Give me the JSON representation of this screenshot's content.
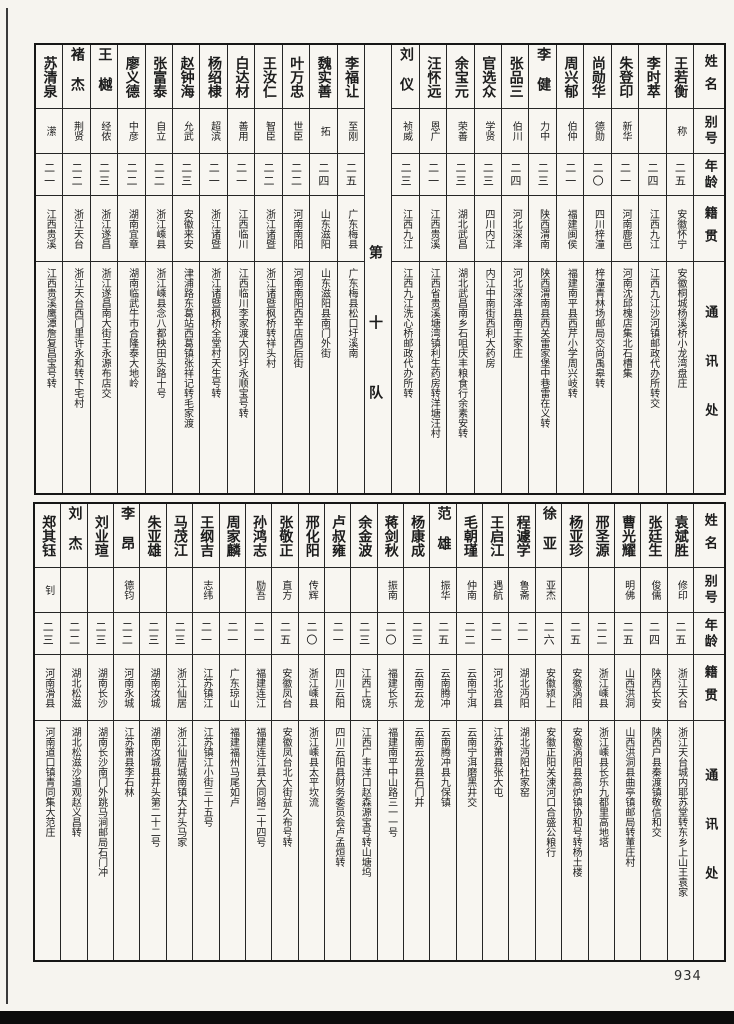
{
  "page_number": "934",
  "row_headers": {
    "name": "姓名",
    "alias": "别号",
    "age": "年龄",
    "native": "籍贯",
    "address": "通讯处"
  },
  "tables": [
    {
      "divider": {
        "label": "第十队",
        "after_index": 10
      },
      "people": [
        {
          "name": "王若衡",
          "alias": "称",
          "age": "二五",
          "native": "安徽怀宁",
          "address": "安徽桐城杨溪桥小龙湾盘庄"
        },
        {
          "name": "李时萃",
          "alias": "",
          "age": "二四",
          "native": "江西九江",
          "address": "江西九江沙河镇邮政代办所转交"
        },
        {
          "name": "朱登印",
          "alias": "新华",
          "age": "二一",
          "native": "河南鹿邑",
          "address": "河南沈邱槐店集北石槽集"
        },
        {
          "name": "尚勋华",
          "alias": "德勋",
          "age": "二〇",
          "native": "四川梓潼",
          "address": "梓潼青林场邮局交尚禹皋转"
        },
        {
          "name": "周兴郁",
          "alias": "伯仲",
          "age": "二一",
          "native": "福建闽侯",
          "address": "福建南平县西芹小学周兴岐转"
        },
        {
          "name": "李健",
          "alias": "力中",
          "age": "二三",
          "native": "陕西渭南",
          "address": "陕西渭南县西关雷家堡中巷雷在义转"
        },
        {
          "name": "张品三",
          "alias": "伯川",
          "age": "二四",
          "native": "河北深泽",
          "address": "河北深泽县南王家庄"
        },
        {
          "name": "官选众",
          "alias": "学贤",
          "age": "二三",
          "native": "四川内江",
          "address": "内江中南街西利大药房"
        },
        {
          "name": "余宝元",
          "alias": "荣善",
          "age": "二三",
          "native": "湖北武昌",
          "address": "湖北武昌南乡石咀庆丰粮食行余素安转"
        },
        {
          "name": "汪怀远",
          "alias": "恩广",
          "age": "二一",
          "native": "江西贵溪",
          "address": "江西省贵溪塘湾镇利生药房转洋塘汪村"
        },
        {
          "name": "刘仪",
          "alias": "祯威",
          "age": "二三",
          "native": "江西九江",
          "address": "江西九江洗心桥邮政代办所转"
        },
        {
          "name": "李福让",
          "alias": "至刚",
          "age": "二五",
          "native": "广东梅县",
          "address": "广东梅县松口圩溪南"
        },
        {
          "name": "魏实善",
          "alias": "拓",
          "age": "二四",
          "native": "山东滋阳",
          "address": "山东滋阳县南门外街"
        },
        {
          "name": "叶万忠",
          "alias": "世臣",
          "age": "二二",
          "native": "河南南阳",
          "address": "河南南阳西辛店西后街"
        },
        {
          "name": "王汝仁",
          "alias": "智臣",
          "age": "二二",
          "native": "浙江诸暨",
          "address": "浙江诸暨枫桥转祥头村"
        },
        {
          "name": "白达材",
          "alias": "善用",
          "age": "二一",
          "native": "江西临川",
          "address": "江西临川李家渡大冈圩永顺宝号转"
        },
        {
          "name": "杨绍棣",
          "alias": "超滨",
          "age": "二一",
          "native": "浙江诸暨",
          "address": "浙江诸暨枫桥全堂村天生号转"
        },
        {
          "name": "赵钟海",
          "alias": "允武",
          "age": "二三",
          "native": "安徽来安",
          "address": "津浦路东葛站西葛镇张祥记转毛家渡"
        },
        {
          "name": "张富泰",
          "alias": "自立",
          "age": "二二",
          "native": "浙江嵊县",
          "address": "浙江嵊县念八都秧田头路十号"
        },
        {
          "name": "廖义德",
          "alias": "中彦",
          "age": "二二",
          "native": "湖南宜章",
          "address": "湖南临武牛市合隆泰大地岭"
        },
        {
          "name": "王樾",
          "alias": "经侬",
          "age": "二三",
          "native": "浙江遂昌",
          "address": "浙江遂昌南大街王永源布店交"
        },
        {
          "name": "褚杰",
          "alias": "荆贤",
          "age": "二二",
          "native": "浙江天台",
          "address": "浙江天台西门里许永和转下宅村"
        },
        {
          "name": "苏清泉",
          "alias": "潆",
          "age": "二一",
          "native": "江西贵溪",
          "address": "江西贵溪鹰潭詹复昌宝号转"
        }
      ]
    },
    {
      "people": [
        {
          "name": "袁斌胜",
          "alias": "修印",
          "age": "二五",
          "native": "浙江天台",
          "address": "浙江天台城内耶苏堂转东乡上山王袁家"
        },
        {
          "name": "张廷生",
          "alias": "俊儒",
          "age": "二四",
          "native": "陕西长安",
          "address": "陕西户县秦渡镇敬信和交"
        },
        {
          "name": "曹光耀",
          "alias": "明佛",
          "age": "二五",
          "native": "山西洪洞",
          "address": "山西洪洞县曲亭镇邮局转董庄村"
        },
        {
          "name": "邢圣源",
          "alias": "",
          "age": "二二",
          "native": "浙江嵊县",
          "address": "浙江嵊县长乐九都里高地塔"
        },
        {
          "name": "杨亚珍",
          "alias": "",
          "age": "二五",
          "native": "安徽涡阳",
          "address": "安徽涡阳县高炉镇协和号转杨土楼"
        },
        {
          "name": "徐亚",
          "alias": "亚杰",
          "age": "二六",
          "native": "安徽颍上",
          "address": "安徽正阳关涑河口合盛公粮行"
        },
        {
          "name": "程遽学",
          "alias": "鲁斋",
          "age": "二一",
          "native": "湖北沔阳",
          "address": "湖北沔阳杜家窑"
        },
        {
          "name": "王启江",
          "alias": "遇航",
          "age": "二一",
          "native": "河北沧县",
          "address": "江苏萧县张大屯"
        },
        {
          "name": "毛朝瑾",
          "alias": "仲南",
          "age": "二二",
          "native": "云南宁洱",
          "address": "云南宁洱磨黑井交"
        },
        {
          "name": "范雄",
          "alias": "振华",
          "age": "二五",
          "native": "云南腾冲",
          "address": "云南腾冲县九保镇"
        },
        {
          "name": "杨康成",
          "alias": "",
          "age": "二三",
          "native": "云南云龙",
          "address": "云南云龙县石门井"
        },
        {
          "name": "蒋剑秋",
          "alias": "振南",
          "age": "二〇",
          "native": "福建长乐",
          "address": "福建南平中山路三一一号"
        },
        {
          "name": "余金波",
          "alias": "",
          "age": "二三",
          "native": "江西上饶",
          "address": "江西广丰洋口赵森源宝号转山塘坞"
        },
        {
          "name": "卢叔雍",
          "alias": "",
          "age": "二一",
          "native": "四川云阳",
          "address": "四川云阳县财务委员会卢孟烜转"
        },
        {
          "name": "邢化阳",
          "alias": "传辉",
          "age": "二〇",
          "native": "浙江嵊县",
          "address": "浙江嵊县太平坎流"
        },
        {
          "name": "张敬正",
          "alias": "直方",
          "age": "二五",
          "native": "安徽凤台",
          "address": "安徽凤台北大街益久布号转"
        },
        {
          "name": "孙鸿志",
          "alias": "励吾",
          "age": "二一",
          "native": "福建连江",
          "address": "福建连江县大同路二十四号"
        },
        {
          "name": "周家麟",
          "alias": "",
          "age": "二一",
          "native": "广东琼山",
          "address": "福建福州马尾如卢"
        },
        {
          "name": "王纲吉",
          "alias": "志纬",
          "age": "二一",
          "native": "江苏镇江",
          "address": "江苏镇江小街三十五号"
        },
        {
          "name": "马茂江",
          "alias": "",
          "age": "二三",
          "native": "浙江仙居",
          "address": "浙江仙居城南镇大井头马家"
        },
        {
          "name": "朱亚雄",
          "alias": "",
          "age": "二三",
          "native": "湖南汝城",
          "address": "湖南汝城县井头第二十二号"
        },
        {
          "name": "李昂",
          "alias": "德钧",
          "age": "二二",
          "native": "河南永城",
          "address": "江苏萧县李石林"
        },
        {
          "name": "刘业瑄",
          "alias": "",
          "age": "二三",
          "native": "湖南长沙",
          "address": "湖南长沙南门外跳马涧邮局石门冲"
        },
        {
          "name": "刘杰",
          "alias": "",
          "age": "二二",
          "native": "湖北松滋",
          "address": "湖北松滋沙道观赵义昌转"
        },
        {
          "name": "郑其钰",
          "alias": "钊",
          "age": "二三",
          "native": "河南滑县",
          "address": "河南道口镇青同集大范庄"
        }
      ]
    }
  ]
}
